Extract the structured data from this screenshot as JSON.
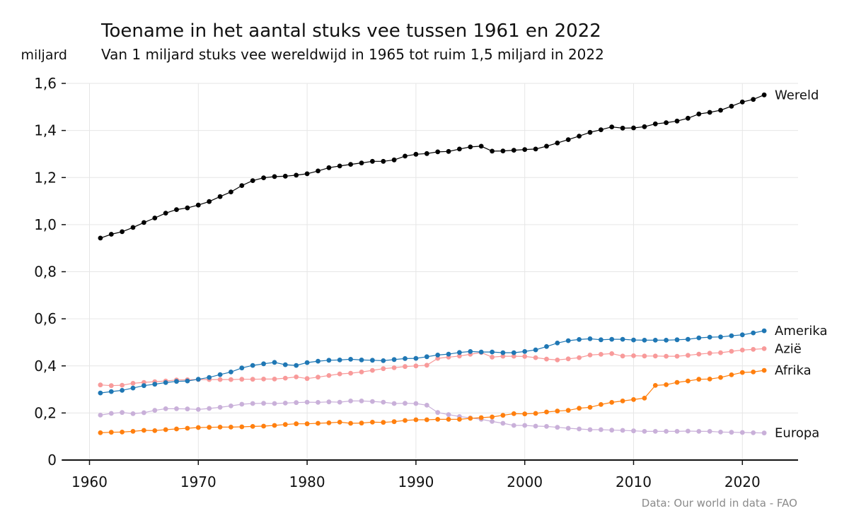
{
  "chart_data": {
    "type": "line",
    "title": "Toename in het aantal stuks vee tussen 1961 en 2022",
    "subtitle": "Van 1 miljard stuks vee wereldwijd in 1965 tot ruim 1,5 miljard in 2022",
    "ylabel": "miljard",
    "xlabel": "",
    "source": "Data: Our world in data - FAO",
    "xlim": [
      1958,
      2025
    ],
    "ylim": [
      0,
      1.6
    ],
    "grid": true,
    "legend": "direct-labels-right",
    "x_ticks": [
      1960,
      1970,
      1980,
      1990,
      2000,
      2010,
      2020
    ],
    "x_tick_labels": [
      "1960",
      "1970",
      "1980",
      "1990",
      "2000",
      "2010",
      "2020"
    ],
    "y_ticks": [
      0,
      0.2,
      0.4,
      0.6,
      0.8,
      1.0,
      1.2,
      1.4,
      1.6
    ],
    "y_tick_labels": [
      "0",
      "0,2",
      "0,4",
      "0,6",
      "0,8",
      "1,0",
      "1,2",
      "1,4",
      "1,6"
    ],
    "x_start": 1961,
    "x_end": 2022,
    "series": [
      {
        "name": "Wereld",
        "color": "#000000",
        "values": [
          0.943,
          0.959,
          0.97,
          0.988,
          1.009,
          1.028,
          1.049,
          1.064,
          1.071,
          1.083,
          1.098,
          1.119,
          1.139,
          1.166,
          1.187,
          1.199,
          1.204,
          1.206,
          1.21,
          1.216,
          1.228,
          1.242,
          1.249,
          1.256,
          1.262,
          1.269,
          1.269,
          1.275,
          1.291,
          1.299,
          1.302,
          1.309,
          1.311,
          1.321,
          1.33,
          1.333,
          1.312,
          1.313,
          1.316,
          1.319,
          1.321,
          1.333,
          1.347,
          1.361,
          1.376,
          1.392,
          1.403,
          1.415,
          1.41,
          1.411,
          1.416,
          1.428,
          1.433,
          1.44,
          1.452,
          1.47,
          1.477,
          1.486,
          1.503,
          1.521,
          1.532,
          1.551
        ]
      },
      {
        "name": "Amerika",
        "color": "#1f77b4",
        "values": [
          0.285,
          0.291,
          0.296,
          0.306,
          0.316,
          0.322,
          0.329,
          0.334,
          0.336,
          0.343,
          0.351,
          0.363,
          0.374,
          0.391,
          0.402,
          0.409,
          0.415,
          0.405,
          0.402,
          0.414,
          0.42,
          0.424,
          0.425,
          0.428,
          0.425,
          0.424,
          0.422,
          0.427,
          0.431,
          0.432,
          0.439,
          0.446,
          0.45,
          0.457,
          0.461,
          0.459,
          0.459,
          0.456,
          0.456,
          0.461,
          0.468,
          0.482,
          0.497,
          0.507,
          0.512,
          0.515,
          0.511,
          0.513,
          0.513,
          0.51,
          0.509,
          0.509,
          0.509,
          0.511,
          0.513,
          0.519,
          0.522,
          0.523,
          0.528,
          0.532,
          0.54,
          0.549
        ]
      },
      {
        "name": "Azië",
        "color": "#f89a9a",
        "values": [
          0.319,
          0.316,
          0.318,
          0.326,
          0.33,
          0.333,
          0.336,
          0.34,
          0.341,
          0.342,
          0.342,
          0.342,
          0.342,
          0.343,
          0.343,
          0.344,
          0.344,
          0.348,
          0.353,
          0.346,
          0.352,
          0.359,
          0.366,
          0.369,
          0.374,
          0.381,
          0.388,
          0.392,
          0.397,
          0.4,
          0.403,
          0.432,
          0.437,
          0.442,
          0.449,
          0.457,
          0.437,
          0.441,
          0.441,
          0.44,
          0.435,
          0.429,
          0.425,
          0.43,
          0.435,
          0.446,
          0.449,
          0.452,
          0.442,
          0.443,
          0.442,
          0.442,
          0.441,
          0.441,
          0.445,
          0.45,
          0.454,
          0.456,
          0.462,
          0.467,
          0.47,
          0.473
        ]
      },
      {
        "name": "Afrika",
        "color": "#ff7f0e",
        "values": [
          0.116,
          0.118,
          0.119,
          0.122,
          0.126,
          0.125,
          0.129,
          0.132,
          0.135,
          0.138,
          0.139,
          0.14,
          0.14,
          0.141,
          0.143,
          0.144,
          0.147,
          0.151,
          0.154,
          0.154,
          0.156,
          0.158,
          0.161,
          0.156,
          0.157,
          0.161,
          0.16,
          0.163,
          0.168,
          0.171,
          0.171,
          0.173,
          0.173,
          0.173,
          0.177,
          0.18,
          0.183,
          0.19,
          0.197,
          0.196,
          0.198,
          0.204,
          0.208,
          0.211,
          0.22,
          0.224,
          0.236,
          0.245,
          0.251,
          0.257,
          0.263,
          0.317,
          0.32,
          0.33,
          0.336,
          0.343,
          0.344,
          0.351,
          0.362,
          0.372,
          0.374,
          0.381
        ]
      },
      {
        "name": "Europa",
        "color": "#c9b0d9",
        "values": [
          0.191,
          0.198,
          0.202,
          0.197,
          0.201,
          0.211,
          0.218,
          0.218,
          0.217,
          0.215,
          0.219,
          0.224,
          0.23,
          0.237,
          0.24,
          0.241,
          0.24,
          0.242,
          0.244,
          0.246,
          0.245,
          0.247,
          0.246,
          0.251,
          0.251,
          0.249,
          0.246,
          0.24,
          0.241,
          0.24,
          0.233,
          0.202,
          0.193,
          0.185,
          0.179,
          0.173,
          0.164,
          0.156,
          0.147,
          0.147,
          0.144,
          0.143,
          0.139,
          0.135,
          0.132,
          0.129,
          0.129,
          0.127,
          0.126,
          0.124,
          0.122,
          0.122,
          0.122,
          0.122,
          0.123,
          0.122,
          0.122,
          0.119,
          0.118,
          0.117,
          0.116,
          0.115
        ]
      }
    ]
  }
}
